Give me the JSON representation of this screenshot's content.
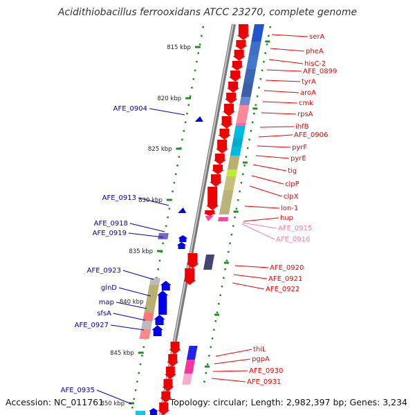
{
  "title": "Acidithiobacillus ferrooxidans ATCC 23270, complete genome",
  "accession": "Accession: NC_011761",
  "topology": "Topology: circular; Length: 2,982,397 bp; Genes: 3,234",
  "kbp_labels": [
    "815 kbp",
    "820 kbp",
    "825 kbp",
    "830 kbp",
    "835 kbp",
    "840 kbp",
    "845 kbp",
    "850 kbp"
  ],
  "colors": {
    "forward_gene": "#ee0000",
    "reverse_gene": "#0000ee",
    "faded_label": "#f080b0",
    "backbone": "#999999",
    "tick": "#228b22"
  },
  "right_labels": [
    {
      "name": "serA",
      "color": "#ee0000"
    },
    {
      "name": "pheA",
      "color": "#ee0000"
    },
    {
      "name": "hisC-2",
      "color": "#ee0000"
    },
    {
      "name": "AFE_0899",
      "color": "#ee0000"
    },
    {
      "name": "tyrA",
      "color": "#ee0000"
    },
    {
      "name": "aroA",
      "color": "#ee0000"
    },
    {
      "name": "cmk",
      "color": "#ee0000"
    },
    {
      "name": "rpsA",
      "color": "#ee0000"
    },
    {
      "name": "ihfB",
      "color": "#ee0000"
    },
    {
      "name": "AFE_0906",
      "color": "#ee0000"
    },
    {
      "name": "pyrF",
      "color": "#ee0000"
    },
    {
      "name": "pyrE",
      "color": "#ee0000"
    },
    {
      "name": "tig",
      "color": "#ee0000"
    },
    {
      "name": "clpP",
      "color": "#ee0000"
    },
    {
      "name": "clpX",
      "color": "#ee0000"
    },
    {
      "name": "lon-1",
      "color": "#ee0000"
    },
    {
      "name": "hup",
      "color": "#ee0000"
    },
    {
      "name": "AFE_0915",
      "color": "#f080b0"
    },
    {
      "name": "AFE_0916",
      "color": "#f080b0"
    },
    {
      "name": "AFE_0920",
      "color": "#ee0000"
    },
    {
      "name": "AFE_0921",
      "color": "#ee0000"
    },
    {
      "name": "AFE_0922",
      "color": "#ee0000"
    },
    {
      "name": "thiL",
      "color": "#ee0000"
    },
    {
      "name": "pgpA",
      "color": "#ee0000"
    },
    {
      "name": "AFE_0930",
      "color": "#ee0000"
    },
    {
      "name": "AFE_0931",
      "color": "#ee0000"
    }
  ],
  "left_labels": [
    {
      "name": "AFE_0904",
      "color": "#0000aa"
    },
    {
      "name": "AFE_0913",
      "color": "#0000aa"
    },
    {
      "name": "AFE_0918",
      "color": "#0000aa"
    },
    {
      "name": "AFE_0919",
      "color": "#0000aa"
    },
    {
      "name": "AFE_0923",
      "color": "#0000aa"
    },
    {
      "name": "glnD",
      "color": "#0000aa"
    },
    {
      "name": "map",
      "color": "#0000aa"
    },
    {
      "name": "sfsA",
      "color": "#0000aa"
    },
    {
      "name": "AFE_0927",
      "color": "#0000aa"
    },
    {
      "name": "AFE_0935",
      "color": "#0000aa"
    }
  ]
}
